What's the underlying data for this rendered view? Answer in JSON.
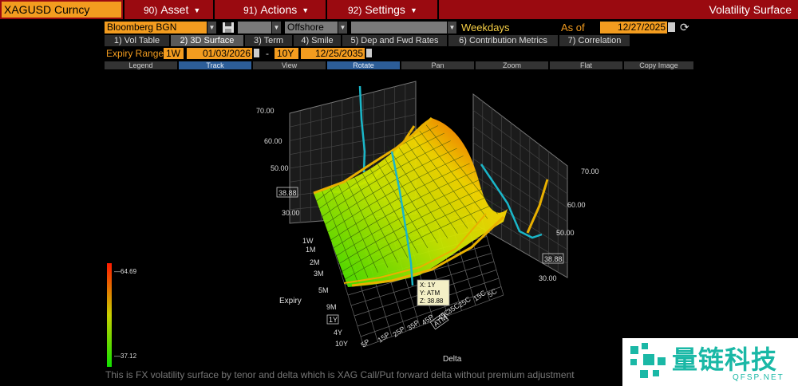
{
  "header": {
    "security": "XAGUSD Curncy",
    "menus": [
      {
        "num": "90)",
        "label": "Asset"
      },
      {
        "num": "91)",
        "label": "Actions"
      },
      {
        "num": "92)",
        "label": "Settings"
      }
    ],
    "function_title": "Volatility Surface"
  },
  "settings": {
    "source": "Bloomberg BGN",
    "market": "Offshore",
    "day_count": "Weekdays",
    "as_of_label": "As of",
    "as_of_date": "12/27/2025"
  },
  "tabs": [
    {
      "label": "1) Vol Table",
      "active": false
    },
    {
      "label": "2) 3D Surface",
      "active": true
    },
    {
      "label": "3) Term",
      "active": false
    },
    {
      "label": "4) Smile",
      "active": false
    },
    {
      "label": "5) Dep and Fwd Rates",
      "active": false
    },
    {
      "label": "6) Contribution Metrics",
      "active": false
    },
    {
      "label": "7) Correlation",
      "active": false
    }
  ],
  "expiry_range": {
    "label": "Expiry Range",
    "from_tenor": "1W",
    "from_date": "01/03/2026",
    "dash": "-",
    "to_tenor": "10Y",
    "to_date": "12/25/2035"
  },
  "toolbar": [
    {
      "label": "Legend",
      "on": false
    },
    {
      "label": "Track",
      "on": true
    },
    {
      "label": "View",
      "on": false
    },
    {
      "label": "Rotate",
      "on": true
    },
    {
      "label": "Pan",
      "on": false
    },
    {
      "label": "Zoom",
      "on": false
    },
    {
      "label": "Flat",
      "on": false
    },
    {
      "label": "Copy Image",
      "on": false
    }
  ],
  "surface": {
    "expiry_axis_label": "Expiry",
    "delta_axis_label": "Delta",
    "expiries": [
      "1W",
      "1M",
      "2M",
      "3M",
      "5M",
      "9M",
      "1Y",
      "4Y",
      "10Y"
    ],
    "deltas": [
      "5P",
      "15P",
      "25P",
      "35P",
      "45P",
      "ATM",
      "45C",
      "35C",
      "25C",
      "15C",
      "5C"
    ],
    "highlight_expiry": "1Y",
    "highlight_delta": "ATM",
    "left_panel_ticks": [
      "70.00",
      "60.00",
      "50.00",
      "30.00"
    ],
    "left_panel_marker": "38.88",
    "right_panel_ticks": [
      "70.00",
      "60.00",
      "50.00",
      "30.00"
    ],
    "right_panel_marker": "38.88",
    "tooltip": [
      "X: 1Y",
      "Y: ATM",
      "Z: 38.88"
    ],
    "color_scale_max": "64.69",
    "color_scale_min": "37.12",
    "colors": {
      "high": "#ff1a00",
      "mid": "#f7e400",
      "low": "#11e000",
      "profile": "#e8b000",
      "track": "#1ab6c8"
    }
  },
  "footnote": "This is FX volatility surface by tenor and delta which is XAG Call/Put forward delta without premium adjustment",
  "watermark": {
    "cn": "量链科技",
    "url": "QFSP.NET"
  }
}
